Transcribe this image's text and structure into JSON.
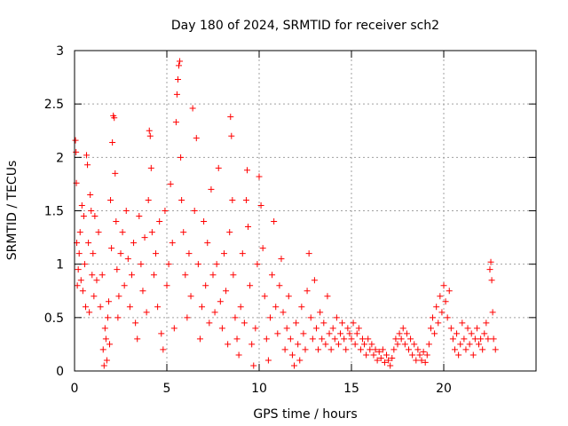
{
  "chart_data": {
    "type": "scatter",
    "title": "Day 180 of 2024, SRMTID for receiver sch2",
    "xlabel": "GPS time / hours",
    "ylabel": "SRMTID / TECUs",
    "xlim": [
      0,
      25
    ],
    "ylim": [
      0,
      3
    ],
    "xticks": [
      0,
      5,
      10,
      15,
      20
    ],
    "yticks": [
      0,
      0.5,
      1,
      1.5,
      2,
      2.5,
      3
    ],
    "xtick_labels": [
      "0",
      "5",
      "10",
      "15",
      "20"
    ],
    "ytick_labels": [
      "0",
      "0.5",
      "1",
      "1.5",
      "2",
      "2.5",
      "3"
    ],
    "grid": true,
    "marker": "plus",
    "color": "#ff0000",
    "series": [
      {
        "name": "sch2",
        "points": [
          [
            0.05,
            2.16
          ],
          [
            0.08,
            2.05
          ],
          [
            0.1,
            1.76
          ],
          [
            0.12,
            1.2
          ],
          [
            0.15,
            0.8
          ],
          [
            0.2,
            0.95
          ],
          [
            0.25,
            1.1
          ],
          [
            0.3,
            1.3
          ],
          [
            0.35,
            0.85
          ],
          [
            0.4,
            1.55
          ],
          [
            0.45,
            0.75
          ],
          [
            0.5,
            1.45
          ],
          [
            0.55,
            1.0
          ],
          [
            0.6,
            0.6
          ],
          [
            0.65,
            2.02
          ],
          [
            0.7,
            1.93
          ],
          [
            0.75,
            1.2
          ],
          [
            0.8,
            0.55
          ],
          [
            0.85,
            1.65
          ],
          [
            0.9,
            1.5
          ],
          [
            0.95,
            0.9
          ],
          [
            1.0,
            1.1
          ],
          [
            1.05,
            0.7
          ],
          [
            1.1,
            1.45
          ],
          [
            1.2,
            0.85
          ],
          [
            1.3,
            1.3
          ],
          [
            1.4,
            0.6
          ],
          [
            1.5,
            0.9
          ],
          [
            1.55,
            0.2
          ],
          [
            1.6,
            0.05
          ],
          [
            1.65,
            0.4
          ],
          [
            1.7,
            0.3
          ],
          [
            1.75,
            0.1
          ],
          [
            1.8,
            0.5
          ],
          [
            1.85,
            0.65
          ],
          [
            1.9,
            0.25
          ],
          [
            1.95,
            1.6
          ],
          [
            2.0,
            1.15
          ],
          [
            2.05,
            2.14
          ],
          [
            2.1,
            2.39
          ],
          [
            2.15,
            2.37
          ],
          [
            2.2,
            1.85
          ],
          [
            2.25,
            1.4
          ],
          [
            2.3,
            0.95
          ],
          [
            2.35,
            0.5
          ],
          [
            2.4,
            0.7
          ],
          [
            2.5,
            1.1
          ],
          [
            2.6,
            1.3
          ],
          [
            2.7,
            0.8
          ],
          [
            2.8,
            1.5
          ],
          [
            2.9,
            1.05
          ],
          [
            3.0,
            0.6
          ],
          [
            3.1,
            0.9
          ],
          [
            3.2,
            1.2
          ],
          [
            3.3,
            0.45
          ],
          [
            3.4,
            0.3
          ],
          [
            3.5,
            1.45
          ],
          [
            3.6,
            1.0
          ],
          [
            3.7,
            0.75
          ],
          [
            3.8,
            1.25
          ],
          [
            3.9,
            0.55
          ],
          [
            4.0,
            1.6
          ],
          [
            4.05,
            2.25
          ],
          [
            4.1,
            2.2
          ],
          [
            4.15,
            1.9
          ],
          [
            4.2,
            1.3
          ],
          [
            4.3,
            0.9
          ],
          [
            4.4,
            1.1
          ],
          [
            4.5,
            0.6
          ],
          [
            4.6,
            1.4
          ],
          [
            4.7,
            0.35
          ],
          [
            4.8,
            0.2
          ],
          [
            4.9,
            1.5
          ],
          [
            5.0,
            0.8
          ],
          [
            5.1,
            1.0
          ],
          [
            5.2,
            1.75
          ],
          [
            5.3,
            1.2
          ],
          [
            5.4,
            0.4
          ],
          [
            5.5,
            2.33
          ],
          [
            5.55,
            2.59
          ],
          [
            5.6,
            2.73
          ],
          [
            5.65,
            2.86
          ],
          [
            5.7,
            2.9
          ],
          [
            5.75,
            2.0
          ],
          [
            5.8,
            1.6
          ],
          [
            5.9,
            1.3
          ],
          [
            6.0,
            0.9
          ],
          [
            6.1,
            0.5
          ],
          [
            6.2,
            1.1
          ],
          [
            6.3,
            0.7
          ],
          [
            6.4,
            2.46
          ],
          [
            6.5,
            1.5
          ],
          [
            6.6,
            2.18
          ],
          [
            6.7,
            1.0
          ],
          [
            6.8,
            0.3
          ],
          [
            6.9,
            0.6
          ],
          [
            7.0,
            1.4
          ],
          [
            7.1,
            0.8
          ],
          [
            7.2,
            1.2
          ],
          [
            7.3,
            0.45
          ],
          [
            7.4,
            1.7
          ],
          [
            7.5,
            0.9
          ],
          [
            7.6,
            0.55
          ],
          [
            7.7,
            1.0
          ],
          [
            7.8,
            1.9
          ],
          [
            7.9,
            0.65
          ],
          [
            8.0,
            0.4
          ],
          [
            8.1,
            1.1
          ],
          [
            8.2,
            0.75
          ],
          [
            8.3,
            0.25
          ],
          [
            8.4,
            1.3
          ],
          [
            8.45,
            2.38
          ],
          [
            8.5,
            2.2
          ],
          [
            8.55,
            1.6
          ],
          [
            8.6,
            0.9
          ],
          [
            8.7,
            0.5
          ],
          [
            8.8,
            0.3
          ],
          [
            8.9,
            0.15
          ],
          [
            9.0,
            0.6
          ],
          [
            9.1,
            1.1
          ],
          [
            9.2,
            0.45
          ],
          [
            9.3,
            1.6
          ],
          [
            9.35,
            1.88
          ],
          [
            9.4,
            1.35
          ],
          [
            9.5,
            0.8
          ],
          [
            9.6,
            0.25
          ],
          [
            9.7,
            0.05
          ],
          [
            9.8,
            0.4
          ],
          [
            9.9,
            1.0
          ],
          [
            10.0,
            1.82
          ],
          [
            10.1,
            1.55
          ],
          [
            10.2,
            1.15
          ],
          [
            10.3,
            0.7
          ],
          [
            10.4,
            0.3
          ],
          [
            10.5,
            0.1
          ],
          [
            10.6,
            0.5
          ],
          [
            10.7,
            0.9
          ],
          [
            10.8,
            1.4
          ],
          [
            10.9,
            0.6
          ],
          [
            11.0,
            0.35
          ],
          [
            11.1,
            0.8
          ],
          [
            11.2,
            1.05
          ],
          [
            11.3,
            0.55
          ],
          [
            11.4,
            0.2
          ],
          [
            11.5,
            0.4
          ],
          [
            11.6,
            0.7
          ],
          [
            11.7,
            0.3
          ],
          [
            11.8,
            0.15
          ],
          [
            11.9,
            0.05
          ],
          [
            12.0,
            0.45
          ],
          [
            12.1,
            0.25
          ],
          [
            12.2,
            0.1
          ],
          [
            12.3,
            0.6
          ],
          [
            12.4,
            0.35
          ],
          [
            12.5,
            0.2
          ],
          [
            12.6,
            0.75
          ],
          [
            12.7,
            1.1
          ],
          [
            12.8,
            0.5
          ],
          [
            12.9,
            0.3
          ],
          [
            13.0,
            0.85
          ],
          [
            13.1,
            0.4
          ],
          [
            13.2,
            0.2
          ],
          [
            13.3,
            0.55
          ],
          [
            13.4,
            0.3
          ],
          [
            13.5,
            0.45
          ],
          [
            13.6,
            0.25
          ],
          [
            13.7,
            0.7
          ],
          [
            13.8,
            0.35
          ],
          [
            13.9,
            0.2
          ],
          [
            14.0,
            0.4
          ],
          [
            14.1,
            0.3
          ],
          [
            14.2,
            0.5
          ],
          [
            14.3,
            0.25
          ],
          [
            14.4,
            0.35
          ],
          [
            14.5,
            0.45
          ],
          [
            14.6,
            0.3
          ],
          [
            14.7,
            0.2
          ],
          [
            14.8,
            0.4
          ],
          [
            14.9,
            0.35
          ],
          [
            15.0,
            0.3
          ],
          [
            15.1,
            0.45
          ],
          [
            15.2,
            0.25
          ],
          [
            15.3,
            0.35
          ],
          [
            15.4,
            0.4
          ],
          [
            15.5,
            0.2
          ],
          [
            15.6,
            0.3
          ],
          [
            15.7,
            0.25
          ],
          [
            15.8,
            0.15
          ],
          [
            15.9,
            0.3
          ],
          [
            16.0,
            0.2
          ],
          [
            16.1,
            0.25
          ],
          [
            16.2,
            0.15
          ],
          [
            16.3,
            0.2
          ],
          [
            16.4,
            0.1
          ],
          [
            16.5,
            0.18
          ],
          [
            16.6,
            0.12
          ],
          [
            16.7,
            0.2
          ],
          [
            16.8,
            0.08
          ],
          [
            16.9,
            0.15
          ],
          [
            17.0,
            0.1
          ],
          [
            17.1,
            0.05
          ],
          [
            17.2,
            0.12
          ],
          [
            17.3,
            0.2
          ],
          [
            17.4,
            0.3
          ],
          [
            17.5,
            0.25
          ],
          [
            17.6,
            0.35
          ],
          [
            17.7,
            0.3
          ],
          [
            17.8,
            0.4
          ],
          [
            17.9,
            0.25
          ],
          [
            18.0,
            0.35
          ],
          [
            18.1,
            0.2
          ],
          [
            18.2,
            0.3
          ],
          [
            18.3,
            0.15
          ],
          [
            18.4,
            0.25
          ],
          [
            18.5,
            0.1
          ],
          [
            18.6,
            0.2
          ],
          [
            18.7,
            0.15
          ],
          [
            18.8,
            0.1
          ],
          [
            18.9,
            0.18
          ],
          [
            19.0,
            0.08
          ],
          [
            19.1,
            0.15
          ],
          [
            19.2,
            0.25
          ],
          [
            19.3,
            0.4
          ],
          [
            19.4,
            0.5
          ],
          [
            19.5,
            0.35
          ],
          [
            19.6,
            0.6
          ],
          [
            19.7,
            0.45
          ],
          [
            19.8,
            0.7
          ],
          [
            19.9,
            0.55
          ],
          [
            20.0,
            0.8
          ],
          [
            20.1,
            0.65
          ],
          [
            20.2,
            0.5
          ],
          [
            20.3,
            0.75
          ],
          [
            20.4,
            0.4
          ],
          [
            20.5,
            0.3
          ],
          [
            20.6,
            0.2
          ],
          [
            20.7,
            0.35
          ],
          [
            20.8,
            0.15
          ],
          [
            20.9,
            0.25
          ],
          [
            21.0,
            0.45
          ],
          [
            21.1,
            0.3
          ],
          [
            21.2,
            0.2
          ],
          [
            21.3,
            0.4
          ],
          [
            21.4,
            0.25
          ],
          [
            21.5,
            0.35
          ],
          [
            21.6,
            0.15
          ],
          [
            21.7,
            0.3
          ],
          [
            21.8,
            0.4
          ],
          [
            21.9,
            0.25
          ],
          [
            22.0,
            0.3
          ],
          [
            22.1,
            0.2
          ],
          [
            22.2,
            0.35
          ],
          [
            22.3,
            0.45
          ],
          [
            22.4,
            0.3
          ],
          [
            22.5,
            0.95
          ],
          [
            22.55,
            1.02
          ],
          [
            22.6,
            0.85
          ],
          [
            22.65,
            0.55
          ],
          [
            22.7,
            0.3
          ],
          [
            22.8,
            0.2
          ]
        ]
      }
    ]
  }
}
